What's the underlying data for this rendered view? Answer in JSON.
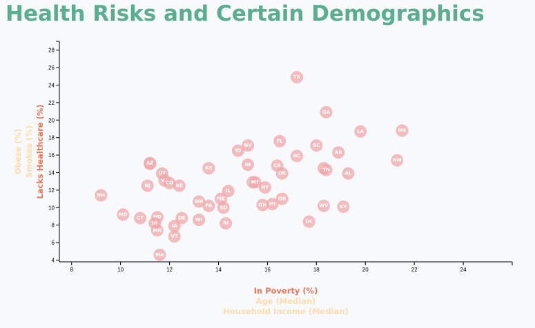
{
  "page": {
    "title": "Health Risks and Certain Demographics"
  },
  "colors": {
    "title": "#5aad8f",
    "dot": "#f0a5a9",
    "active_axis": "#e57a59",
    "inactive_axis": "#fddcae"
  },
  "chart_data": {
    "type": "scatter",
    "xlim": [
      7.5,
      26
    ],
    "ylim": [
      3.8,
      29
    ],
    "x_ticks": [
      8,
      10,
      12,
      14,
      16,
      18,
      20,
      22,
      24
    ],
    "y_ticks": [
      4,
      6,
      8,
      10,
      12,
      14,
      16,
      18,
      20,
      22,
      24,
      26,
      28
    ],
    "x_axis_labels": [
      {
        "text": "In Poverty (%)",
        "active": true
      },
      {
        "text": "Age (Median)",
        "active": false
      },
      {
        "text": "Household Income (Median)",
        "active": false
      }
    ],
    "y_axis_labels": [
      {
        "text": "Lacks Healthcare (%)",
        "active": true
      },
      {
        "text": "Smokes (%)",
        "active": false
      },
      {
        "text": "Obese (%)",
        "active": false
      }
    ],
    "points": [
      {
        "label": "TX",
        "x": 17.2,
        "y": 24.9
      },
      {
        "label": "GA",
        "x": 18.4,
        "y": 20.9
      },
      {
        "label": "LA",
        "x": 19.8,
        "y": 18.7
      },
      {
        "label": "MS",
        "x": 21.5,
        "y": 18.8
      },
      {
        "label": "FL",
        "x": 16.5,
        "y": 17.6
      },
      {
        "label": "SC",
        "x": 18.0,
        "y": 17.1
      },
      {
        "label": "NV",
        "x": 15.2,
        "y": 17.1
      },
      {
        "label": "ID",
        "x": 14.8,
        "y": 16.5
      },
      {
        "label": "AR",
        "x": 18.9,
        "y": 16.3
      },
      {
        "label": "NC",
        "x": 17.2,
        "y": 15.9
      },
      {
        "label": "NM",
        "x": 21.3,
        "y": 15.4
      },
      {
        "label": "AK",
        "x": 11.2,
        "y": 15.0
      },
      {
        "label": "AZ",
        "x": 11.2,
        "y": 15.1
      },
      {
        "label": "IN",
        "x": 15.2,
        "y": 14.9
      },
      {
        "label": "CA",
        "x": 16.4,
        "y": 14.8
      },
      {
        "label": "KS",
        "x": 13.6,
        "y": 14.5
      },
      {
        "label": "AZ",
        "x": 18.3,
        "y": 14.5
      },
      {
        "label": "TN",
        "x": 18.4,
        "y": 14.3
      },
      {
        "label": "OK",
        "x": 16.6,
        "y": 13.9
      },
      {
        "label": "AL",
        "x": 19.3,
        "y": 13.9
      },
      {
        "label": "UT",
        "x": 11.7,
        "y": 13.9
      },
      {
        "label": "VA",
        "x": 11.8,
        "y": 13.1
      },
      {
        "label": "CO",
        "x": 12.0,
        "y": 12.8
      },
      {
        "label": "NJ",
        "x": 11.1,
        "y": 12.5
      },
      {
        "label": "NE",
        "x": 12.4,
        "y": 12.5
      },
      {
        "label": "MO",
        "x": 15.4,
        "y": 12.9
      },
      {
        "label": "MT",
        "x": 15.5,
        "y": 12.9
      },
      {
        "label": "NY",
        "x": 15.9,
        "y": 12.3
      },
      {
        "label": "IL",
        "x": 14.4,
        "y": 11.9
      },
      {
        "label": "NH",
        "x": 9.2,
        "y": 11.4
      },
      {
        "label": "ME",
        "x": 14.1,
        "y": 11.0
      },
      {
        "label": "OR",
        "x": 16.6,
        "y": 11.0
      },
      {
        "label": "WA",
        "x": 13.2,
        "y": 10.7
      },
      {
        "label": "PA",
        "x": 13.6,
        "y": 10.2
      },
      {
        "label": "SD",
        "x": 14.2,
        "y": 10.0
      },
      {
        "label": "OH",
        "x": 15.8,
        "y": 10.3
      },
      {
        "label": "MI",
        "x": 16.2,
        "y": 10.4
      },
      {
        "label": "WV",
        "x": 18.3,
        "y": 10.2
      },
      {
        "label": "KY",
        "x": 19.1,
        "y": 10.1
      },
      {
        "label": "MD",
        "x": 10.1,
        "y": 9.2
      },
      {
        "label": "CT",
        "x": 10.8,
        "y": 8.8
      },
      {
        "label": "ND",
        "x": 11.5,
        "y": 8.9
      },
      {
        "label": "DE",
        "x": 12.5,
        "y": 8.8
      },
      {
        "label": "WI",
        "x": 13.2,
        "y": 8.6
      },
      {
        "label": "HI",
        "x": 11.4,
        "y": 8.2
      },
      {
        "label": "RI",
        "x": 14.3,
        "y": 8.2
      },
      {
        "label": "DC",
        "x": 17.7,
        "y": 8.4
      },
      {
        "label": "IA",
        "x": 12.2,
        "y": 7.9
      },
      {
        "label": "MN",
        "x": 11.5,
        "y": 7.4
      },
      {
        "label": "VT",
        "x": 12.2,
        "y": 6.7
      },
      {
        "label": "MA",
        "x": 11.6,
        "y": 4.6
      }
    ]
  }
}
